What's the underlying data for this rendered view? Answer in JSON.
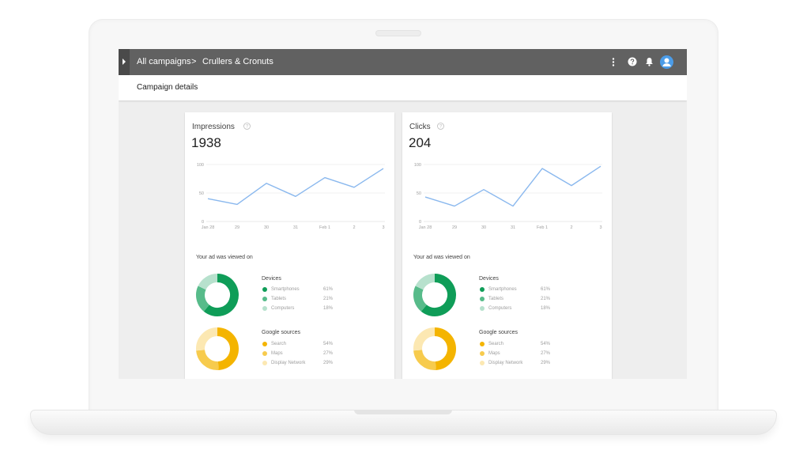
{
  "breadcrumb": {
    "root": "All campaigns",
    "separator": ">",
    "current": "Crullers & Cronuts"
  },
  "topbar_icons": [
    "more-vert-icon",
    "help-icon",
    "bell-icon",
    "account-icon"
  ],
  "subheader": {
    "title": "Campaign details"
  },
  "colors": {
    "topbar": "#616161",
    "line": "#8ab8ee",
    "devices": [
      "#0f9d58",
      "#57bb8a",
      "#b7e1cd"
    ],
    "sources": [
      "#f4b400",
      "#f7cb4d",
      "#fce8b2"
    ]
  },
  "cards": [
    {
      "title": "Impressions",
      "value": "1938",
      "viewed_label": "Your ad was viewed on",
      "devices": {
        "title": "Devices",
        "items": [
          {
            "label": "Smartphones",
            "pct": "61%"
          },
          {
            "label": "Tablets",
            "pct": "21%"
          },
          {
            "label": "Computers",
            "pct": "18%"
          }
        ]
      },
      "sources": {
        "title": "Google sources",
        "items": [
          {
            "label": "Search",
            "pct": "54%"
          },
          {
            "label": "Maps",
            "pct": "27%"
          },
          {
            "label": "Display Network",
            "pct": "29%"
          }
        ]
      }
    },
    {
      "title": "Clicks",
      "value": "204",
      "viewed_label": "Your ad was viewed on",
      "devices": {
        "title": "Devices",
        "items": [
          {
            "label": "Smartphones",
            "pct": "61%"
          },
          {
            "label": "Tablets",
            "pct": "21%"
          },
          {
            "label": "Computers",
            "pct": "18%"
          }
        ]
      },
      "sources": {
        "title": "Google sources",
        "items": [
          {
            "label": "Search",
            "pct": "54%"
          },
          {
            "label": "Maps",
            "pct": "27%"
          },
          {
            "label": "Display Network",
            "pct": "29%"
          }
        ]
      }
    }
  ],
  "chart_data": [
    {
      "type": "line",
      "x": [
        "Jan 28",
        "29",
        "30",
        "31",
        "Feb 1",
        "2",
        "3"
      ],
      "series": [
        {
          "values": [
            40,
            30,
            67,
            44,
            77,
            60,
            93
          ]
        }
      ],
      "yticks": [
        "0",
        "50",
        "100"
      ],
      "ylim": [
        0,
        100
      ],
      "grid": true
    },
    {
      "type": "line",
      "x": [
        "Jan 28",
        "29",
        "30",
        "31",
        "Feb 1",
        "2",
        "3"
      ],
      "series": [
        {
          "values": [
            43,
            27,
            56,
            27,
            93,
            63,
            97
          ]
        }
      ],
      "yticks": [
        "0",
        "50",
        "100"
      ],
      "ylim": [
        0,
        100
      ],
      "grid": true
    },
    {
      "type": "pie",
      "categories": [
        "Smartphones",
        "Tablets",
        "Computers"
      ],
      "values": [
        61,
        21,
        18
      ]
    },
    {
      "type": "pie",
      "categories": [
        "Search",
        "Maps",
        "Display Network"
      ],
      "values": [
        54,
        27,
        29
      ]
    }
  ]
}
